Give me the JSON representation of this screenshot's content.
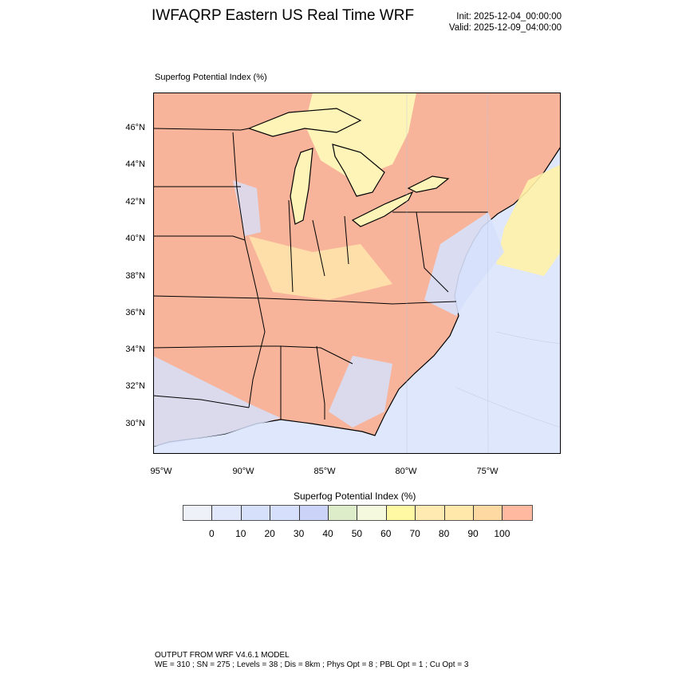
{
  "header": {
    "title": "IWFAQRP Eastern US Real Time WRF",
    "init": "Init: 2025-12-04_00:00:00",
    "valid": "Valid: 2025-12-09_04:00:00"
  },
  "plot": {
    "label": "Superfog Potential Index   (%)",
    "lat_labels": [
      "46°N",
      "44°N",
      "42°N",
      "40°N",
      "38°N",
      "36°N",
      "34°N",
      "32°N",
      "30°N"
    ],
    "lon_labels": [
      "95°W",
      "90°W",
      "85°W",
      "80°W",
      "75°W"
    ],
    "colors": {
      "land_high": "#f7b49b",
      "ocean": "#dfe7fc",
      "lakes": "#fff4b8",
      "boundary": "#000000"
    }
  },
  "colorbar": {
    "title": "Superfog Potential Index  (%)",
    "labels": [
      "0",
      "10",
      "20",
      "30",
      "40",
      "50",
      "60",
      "70",
      "80",
      "90",
      "100"
    ],
    "colors": [
      "#eef1f8",
      "#e1e8fb",
      "#d6e0fb",
      "#d6e0fc",
      "#cbd3f8",
      "#deedc9",
      "#f5fadf",
      "#fff9a4",
      "#ffebb1",
      "#ffe8aa",
      "#ffd9a2",
      "#ffb9a0"
    ]
  },
  "footer": {
    "line1": "OUTPUT FROM WRF V4.6.1 MODEL",
    "line2": "WE = 310 ; SN = 275 ; Levels = 38 ; Dis = 8km ; Phys Opt = 8 ; PBL Opt = 1 ; Cu Opt = 3"
  }
}
